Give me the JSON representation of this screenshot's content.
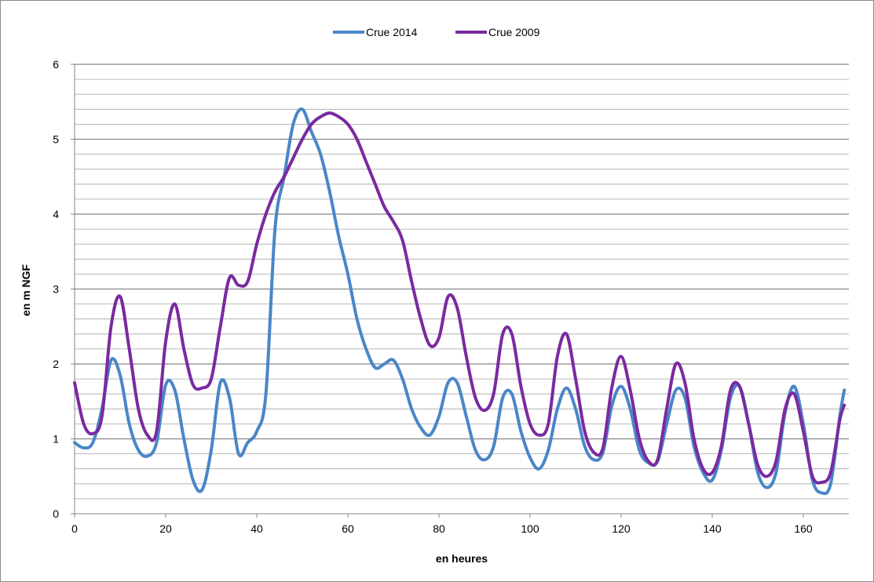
{
  "chart_data": {
    "type": "line",
    "title": "",
    "xlabel": "en heures",
    "ylabel": "en m NGF",
    "xlim": [
      0,
      170
    ],
    "ylim": [
      0,
      6
    ],
    "x_ticks": [
      "0",
      "20",
      "40",
      "60",
      "80",
      "100",
      "120",
      "140",
      "160"
    ],
    "y_ticks": [
      "0",
      "1",
      "2",
      "3",
      "4",
      "5",
      "6"
    ],
    "y_major_step": 1,
    "y_minor_step": 0.2,
    "grid": true,
    "legend_position": "top",
    "series": [
      {
        "name": "Crue 2014",
        "color": "#4a86c8",
        "x": [
          0,
          2,
          4,
          6,
          8,
          10,
          12,
          14,
          16,
          18,
          20,
          22,
          24,
          26,
          28,
          30,
          32,
          34,
          36,
          38,
          40,
          42,
          44,
          46,
          48,
          50,
          52,
          54,
          56,
          58,
          60,
          62,
          64,
          66,
          68,
          70,
          72,
          74,
          76,
          78,
          80,
          82,
          84,
          86,
          88,
          90,
          92,
          94,
          96,
          98,
          100,
          102,
          104,
          106,
          108,
          110,
          112,
          114,
          116,
          118,
          120,
          122,
          124,
          126,
          128,
          130,
          132,
          134,
          136,
          138,
          140,
          142,
          144,
          146,
          148,
          150,
          152,
          154,
          156,
          158,
          160,
          162,
          164,
          166,
          168,
          169
        ],
        "y": [
          0.95,
          0.88,
          0.95,
          1.4,
          2.05,
          1.85,
          1.2,
          0.85,
          0.77,
          0.95,
          1.72,
          1.65,
          1.0,
          0.45,
          0.32,
          0.85,
          1.75,
          1.55,
          0.8,
          0.95,
          1.1,
          1.6,
          3.8,
          4.5,
          5.2,
          5.4,
          5.1,
          4.8,
          4.3,
          3.7,
          3.2,
          2.6,
          2.2,
          1.95,
          2.0,
          2.05,
          1.8,
          1.4,
          1.15,
          1.05,
          1.3,
          1.75,
          1.75,
          1.3,
          0.85,
          0.72,
          0.9,
          1.55,
          1.6,
          1.1,
          0.75,
          0.6,
          0.85,
          1.4,
          1.68,
          1.4,
          0.9,
          0.72,
          0.82,
          1.45,
          1.7,
          1.4,
          0.85,
          0.68,
          0.7,
          1.2,
          1.65,
          1.55,
          0.9,
          0.55,
          0.45,
          0.85,
          1.55,
          1.7,
          1.2,
          0.55,
          0.35,
          0.55,
          1.35,
          1.7,
          1.2,
          0.45,
          0.28,
          0.4,
          1.3,
          1.65
        ]
      },
      {
        "name": "Crue 2009",
        "color": "#7a2aa0",
        "x": [
          0,
          2,
          4,
          6,
          8,
          10,
          12,
          14,
          16,
          18,
          20,
          22,
          24,
          26,
          28,
          30,
          32,
          34,
          36,
          38,
          40,
          42,
          44,
          46,
          48,
          50,
          52,
          54,
          56,
          58,
          60,
          62,
          64,
          66,
          68,
          70,
          72,
          74,
          76,
          78,
          80,
          82,
          84,
          86,
          88,
          90,
          92,
          94,
          96,
          98,
          100,
          102,
          104,
          106,
          108,
          110,
          112,
          114,
          116,
          118,
          120,
          122,
          124,
          126,
          128,
          130,
          132,
          134,
          136,
          138,
          140,
          142,
          144,
          146,
          148,
          150,
          152,
          154,
          156,
          158,
          160,
          162,
          164,
          166,
          168,
          169
        ],
        "y": [
          1.75,
          1.2,
          1.07,
          1.3,
          2.5,
          2.9,
          2.2,
          1.4,
          1.05,
          1.1,
          2.3,
          2.8,
          2.2,
          1.72,
          1.68,
          1.8,
          2.5,
          3.15,
          3.05,
          3.1,
          3.6,
          4.0,
          4.3,
          4.5,
          4.75,
          5.0,
          5.2,
          5.3,
          5.35,
          5.3,
          5.2,
          5.0,
          4.7,
          4.4,
          4.1,
          3.9,
          3.65,
          3.1,
          2.6,
          2.25,
          2.35,
          2.9,
          2.75,
          2.1,
          1.55,
          1.38,
          1.6,
          2.4,
          2.4,
          1.7,
          1.2,
          1.05,
          1.2,
          2.1,
          2.4,
          1.8,
          1.1,
          0.82,
          0.88,
          1.7,
          2.1,
          1.65,
          1.0,
          0.7,
          0.72,
          1.4,
          2.0,
          1.75,
          1.0,
          0.6,
          0.55,
          0.9,
          1.65,
          1.7,
          1.2,
          0.65,
          0.5,
          0.7,
          1.4,
          1.6,
          1.1,
          0.5,
          0.42,
          0.55,
          1.25,
          1.45
        ]
      }
    ]
  }
}
